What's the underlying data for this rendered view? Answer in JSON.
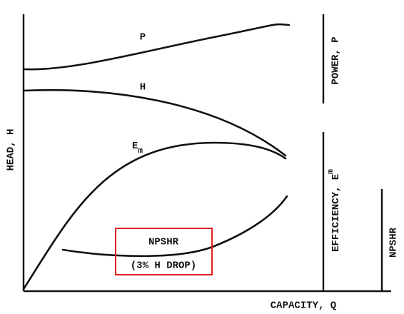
{
  "axes": {
    "y_label": "HEAD, H",
    "x_label": "CAPACITY, Q"
  },
  "curves": [
    {
      "label": "P"
    },
    {
      "label": "H"
    },
    {
      "label": "E",
      "subscript": "m"
    },
    {
      "label": "NPSHR",
      "note": "(3% H DROP)"
    }
  ],
  "right_axes": [
    {
      "label": "POWER, P"
    },
    {
      "label": "EFFICIENCY, E",
      "subscript": "m"
    },
    {
      "label": "NPSHR"
    }
  ]
}
